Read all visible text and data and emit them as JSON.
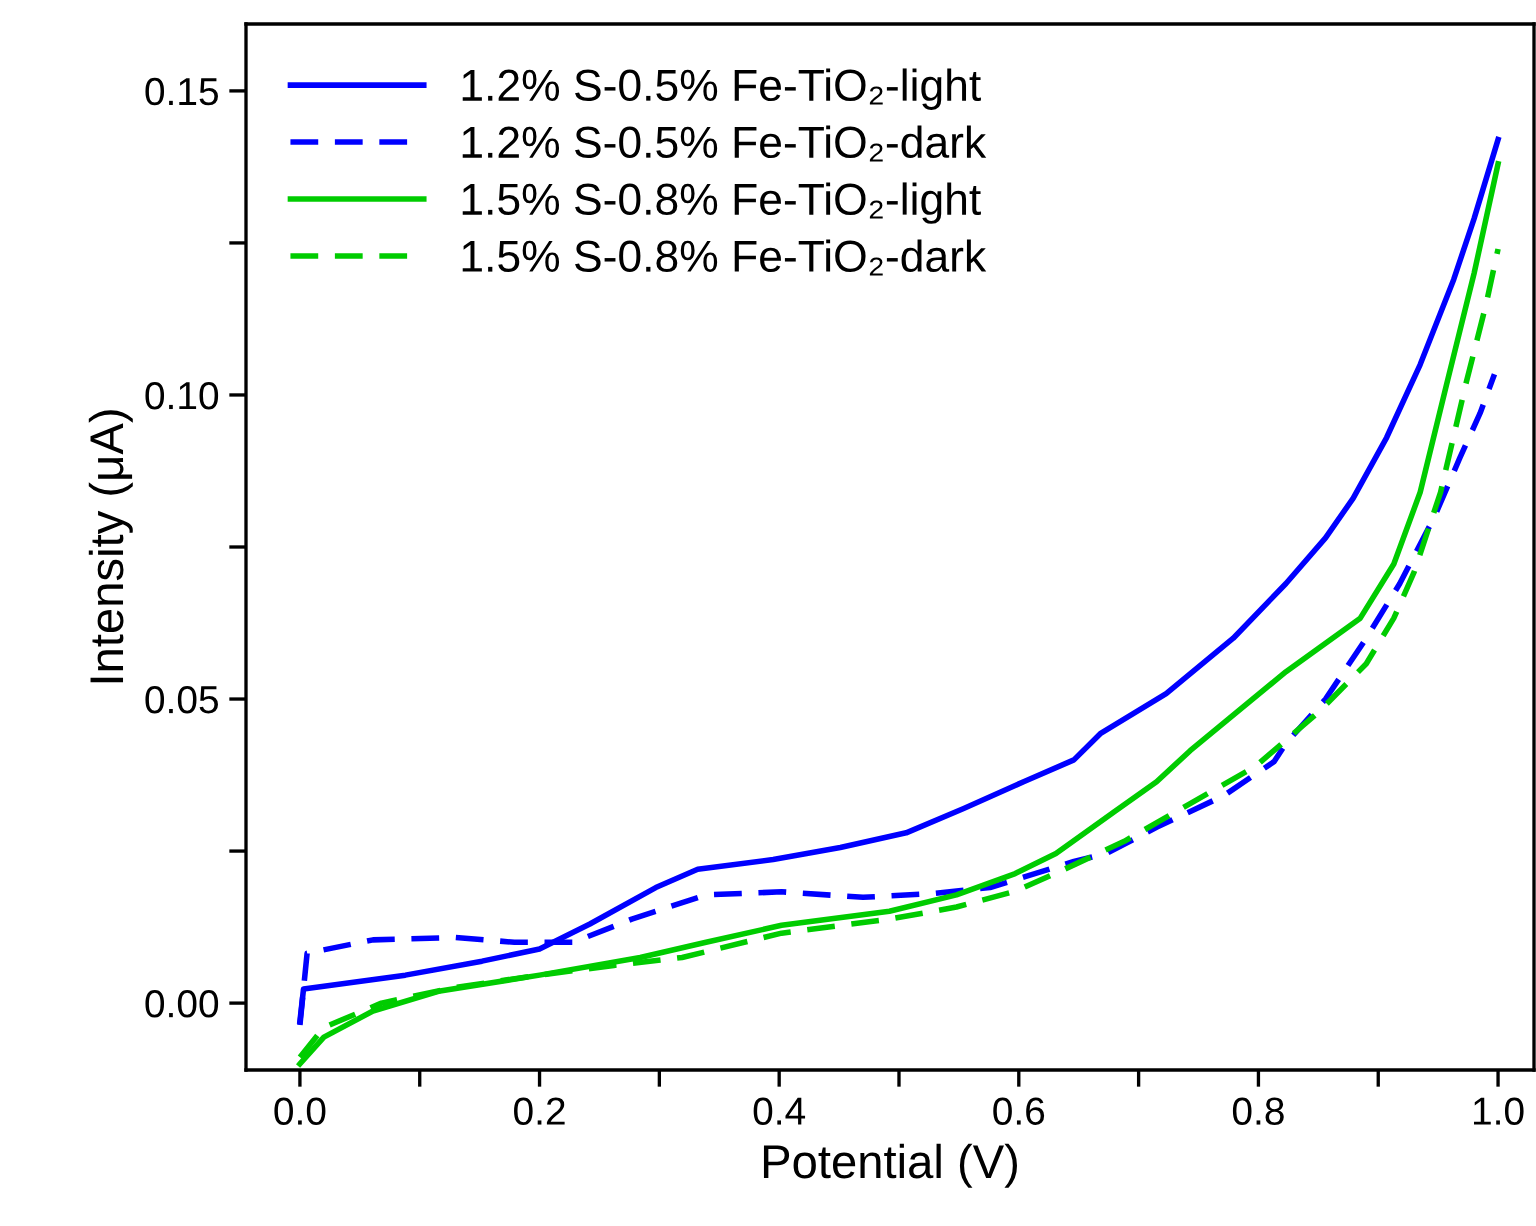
{
  "chart_data": {
    "type": "line",
    "xlabel": "Potential (V)",
    "ylabel": "Intensity (μA)",
    "xlim": [
      -0.045,
      1.03
    ],
    "ylim": [
      -0.011,
      0.161
    ],
    "xticks": [
      {
        "value": 0.0,
        "label": "0.0"
      },
      {
        "value": 0.1,
        "label": null
      },
      {
        "value": 0.2,
        "label": "0.2"
      },
      {
        "value": 0.3,
        "label": null
      },
      {
        "value": 0.4,
        "label": "0.4"
      },
      {
        "value": 0.5,
        "label": null
      },
      {
        "value": 0.6,
        "label": "0.6"
      },
      {
        "value": 0.7,
        "label": null
      },
      {
        "value": 0.8,
        "label": "0.8"
      },
      {
        "value": 0.9,
        "label": null
      },
      {
        "value": 1.0,
        "label": "1.0"
      }
    ],
    "yticks": [
      {
        "value": 0.0,
        "label": "0.00"
      },
      {
        "value": 0.025,
        "label": null
      },
      {
        "value": 0.05,
        "label": "0.05"
      },
      {
        "value": 0.075,
        "label": null
      },
      {
        "value": 0.1,
        "label": "0.10"
      },
      {
        "value": 0.125,
        "label": null
      },
      {
        "value": 0.15,
        "label": "0.15"
      }
    ],
    "grid": false,
    "legend": "top left",
    "marker": "none",
    "series": [
      {
        "name": "1.2% S-0.5% Fe-TiO₂-light",
        "color": "#0000ff",
        "line_style": "solid",
        "x": [
          0.0,
          0.003,
          0.088,
          0.152,
          0.2,
          0.242,
          0.297,
          0.332,
          0.395,
          0.451,
          0.506,
          0.554,
          0.604,
          0.646,
          0.668,
          0.723,
          0.779,
          0.823,
          0.856,
          0.879,
          0.907,
          0.935,
          0.963,
          0.98,
          1.0
        ],
        "values": [
          -0.003,
          0.0023,
          0.0046,
          0.0069,
          0.0089,
          0.013,
          0.019,
          0.022,
          0.0236,
          0.0256,
          0.028,
          0.032,
          0.0364,
          0.04,
          0.0443,
          0.0509,
          0.06,
          0.069,
          0.0765,
          0.083,
          0.093,
          0.105,
          0.119,
          0.129,
          0.142
        ]
      },
      {
        "name": "1.2% S-0.5% Fe-TiO₂-dark",
        "color": "#0000ff",
        "line_style": "dashed",
        "x": [
          0.0,
          0.006,
          0.061,
          0.13,
          0.179,
          0.228,
          0.277,
          0.339,
          0.402,
          0.47,
          0.527,
          0.576,
          0.604,
          0.646,
          0.673,
          0.715,
          0.771,
          0.813,
          0.823,
          0.856,
          0.89,
          0.918,
          0.947,
          0.968,
          0.985,
          0.997
        ],
        "values": [
          -0.0036,
          0.0082,
          0.0104,
          0.0108,
          0.01,
          0.01,
          0.0138,
          0.0178,
          0.0183,
          0.0174,
          0.018,
          0.019,
          0.0207,
          0.0233,
          0.0246,
          0.0289,
          0.0341,
          0.0397,
          0.0427,
          0.05,
          0.06,
          0.069,
          0.08,
          0.0896,
          0.097,
          0.1034
        ]
      },
      {
        "name": "1.5% S-0.8% Fe-TiO₂-light",
        "color": "#00cc00",
        "line_style": "solid",
        "x": [
          0.0,
          0.02,
          0.061,
          0.117,
          0.2,
          0.284,
          0.339,
          0.402,
          0.492,
          0.548,
          0.597,
          0.631,
          0.68,
          0.715,
          0.743,
          0.823,
          0.885,
          0.913,
          0.935,
          0.957,
          0.98,
          1.0
        ],
        "values": [
          -0.01,
          -0.0056,
          -0.0013,
          0.002,
          0.0046,
          0.0075,
          0.01,
          0.0128,
          0.0151,
          0.0178,
          0.0213,
          0.0246,
          0.0315,
          0.0364,
          0.0415,
          0.0545,
          0.0633,
          0.0722,
          0.084,
          0.1017,
          0.12,
          0.138
        ]
      },
      {
        "name": "1.5% S-0.8% Fe-TiO₂-dark",
        "color": "#00cc00",
        "line_style": "dashed",
        "x": [
          0.0,
          0.02,
          0.068,
          0.13,
          0.2,
          0.262,
          0.319,
          0.402,
          0.492,
          0.548,
          0.597,
          0.638,
          0.688,
          0.743,
          0.798,
          0.851,
          0.89,
          0.913,
          0.93,
          0.952,
          0.973,
          0.99,
          1.0
        ],
        "values": [
          -0.0089,
          -0.004,
          0.0,
          0.0026,
          0.0046,
          0.0062,
          0.0075,
          0.0115,
          0.0138,
          0.0158,
          0.0184,
          0.022,
          0.0266,
          0.0328,
          0.039,
          0.048,
          0.0558,
          0.0633,
          0.0709,
          0.084,
          0.1017,
          0.1149,
          0.124
        ]
      }
    ]
  }
}
